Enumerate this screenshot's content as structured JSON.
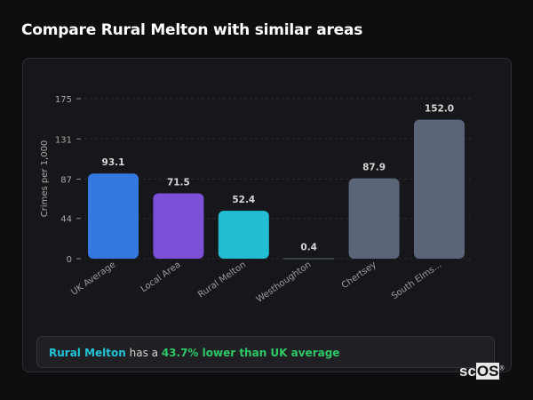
{
  "title": "Compare Rural Melton with similar areas",
  "chart_data": {
    "type": "bar",
    "categories": [
      "UK Average",
      "Local Area",
      "Rural Melton",
      "Westhoughton",
      "Chertsey",
      "South Elms..."
    ],
    "values": [
      93.1,
      71.5,
      52.4,
      0.4,
      87.9,
      152.0
    ],
    "value_labels": [
      "93.1",
      "71.5",
      "52.4",
      "0.4",
      "87.9",
      "152.0"
    ],
    "colors": [
      "#3578e0",
      "#7b4fd6",
      "#22bcd3",
      "#5a6578",
      "#5a6578",
      "#5a6578"
    ],
    "ylabel": "Crimes per 1,000",
    "xlabel": "",
    "yticks": [
      0,
      44,
      87,
      131,
      175
    ],
    "ylim": [
      0,
      175
    ],
    "grid": true
  },
  "summary": {
    "area": "Rural Melton",
    "text_mid": " has a ",
    "highlight": "43.7% lower than UK average"
  },
  "logo": {
    "text_a": "sc",
    "text_b": "OS",
    "mark": "®"
  }
}
